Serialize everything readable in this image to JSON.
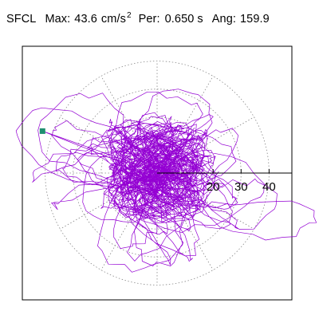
{
  "header": {
    "station": "SFCL",
    "max_label": "Max:",
    "max_value": "43.6",
    "max_unit": "cm/s",
    "max_unit_exp": "2",
    "per_label": "Per:",
    "per_value": "0.650",
    "per_unit": "s",
    "ang_label": "Ang:",
    "ang_value": "159.9"
  },
  "chart_data": {
    "type": "line",
    "subtype": "polar-particle-motion",
    "title": "",
    "xlabel": "",
    "ylabel": "",
    "radial_ticks": [
      20,
      30,
      40
    ],
    "radial_tick_labels": [
      "20",
      "30",
      "40"
    ],
    "ring_radii": [
      10,
      20,
      30,
      40
    ],
    "radial_max": 43.6,
    "spoke_angle_step_deg": 30,
    "grid": true,
    "series": [
      {
        "color": "#9400d3",
        "peak_point": {
          "angle_deg": 159.9,
          "radius": 43.6
        },
        "dominant_lobes": [
          {
            "angle_deg": 159.9,
            "radius": 43.6
          },
          {
            "angle_deg": -20.0,
            "radius": 42.0
          },
          {
            "angle_deg": 80.0,
            "radius": 28.0
          },
          {
            "angle_deg": -100.0,
            "radius": 30.0
          },
          {
            "angle_deg": 200.0,
            "radius": 24.0
          }
        ]
      }
    ],
    "peak_marker_color": "#1f8f6f"
  }
}
